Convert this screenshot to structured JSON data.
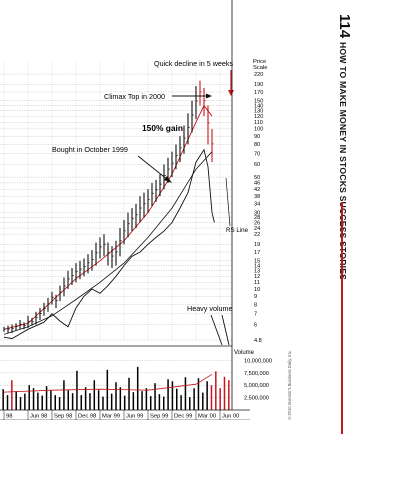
{
  "page": {
    "number": "114",
    "running_title": "HOW TO MAKE MONEY IN STOCKS SUCCESS STORIES",
    "copyright": "©2010 Investor's Business Daily, Inc."
  },
  "chart_data": {
    "type": "line",
    "price_scale_label": "Price Scale",
    "price_ticks": [
      220,
      190,
      170,
      150,
      140,
      130,
      120,
      110,
      100,
      90,
      80,
      70,
      60,
      50,
      46,
      42,
      38,
      34,
      30,
      28,
      26,
      24,
      22,
      19,
      17,
      15,
      14,
      13,
      12,
      11,
      10,
      9,
      8,
      7,
      6,
      4.8
    ],
    "log_scale": true,
    "ylim": [
      4.8,
      240
    ],
    "x_labels": [
      "98",
      "Jun 98",
      "Sep 98",
      "Dec 98",
      "Mar 99",
      "Jun 99",
      "Sep 99",
      "Dec 99",
      "Mar 00",
      "Jun 00"
    ],
    "x_months": [
      0,
      3,
      6,
      9,
      12,
      15,
      18,
      21,
      24,
      27
    ],
    "xlim": [
      -0.5,
      28.5
    ],
    "price_bars": [
      [
        0,
        5.4,
        5.8
      ],
      [
        0.5,
        5.3,
        5.9
      ],
      [
        1,
        5.3,
        6.0
      ],
      [
        1.5,
        5.5,
        6.1
      ],
      [
        2,
        5.6,
        6.4
      ],
      [
        2.5,
        5.6,
        6.2
      ],
      [
        3,
        5.7,
        6.8
      ],
      [
        3.5,
        5.9,
        6.6
      ],
      [
        4,
        6.0,
        7.2
      ],
      [
        4.5,
        6.4,
        7.6
      ],
      [
        5,
        6.8,
        8.2
      ],
      [
        5.5,
        7.2,
        8.8
      ],
      [
        6,
        8.0,
        9.6
      ],
      [
        6.5,
        7.6,
        9.2
      ],
      [
        7,
        8.4,
        10.5
      ],
      [
        7.5,
        9.0,
        11.8
      ],
      [
        8,
        10.0,
        13.0
      ],
      [
        8.5,
        10.6,
        13.5
      ],
      [
        9,
        11.0,
        14.5
      ],
      [
        9.5,
        11.5,
        15.0
      ],
      [
        10,
        12.0,
        15.5
      ],
      [
        10.5,
        12.5,
        16.5
      ],
      [
        11,
        13.0,
        17.5
      ],
      [
        11.5,
        14.0,
        19.5
      ],
      [
        12,
        15.5,
        21.0
      ],
      [
        12.5,
        16.0,
        22.0
      ],
      [
        13,
        14.0,
        19.5
      ],
      [
        13.5,
        13.5,
        18.5
      ],
      [
        14,
        14.0,
        20.0
      ],
      [
        14.5,
        16.0,
        24.0
      ],
      [
        15,
        19.0,
        27.0
      ],
      [
        15.5,
        21.0,
        30.0
      ],
      [
        16,
        23.0,
        32.0
      ],
      [
        16.5,
        24.0,
        34.0
      ],
      [
        17,
        26.0,
        38.0
      ],
      [
        17.5,
        28.0,
        40.0
      ],
      [
        18,
        30.0,
        42.0
      ],
      [
        18.5,
        33.0,
        46.0
      ],
      [
        19,
        35.0,
        48.0
      ],
      [
        19.5,
        38.0,
        52.0
      ],
      [
        20,
        42.0,
        60.0
      ],
      [
        20.5,
        46.0,
        66.0
      ],
      [
        21,
        50.0,
        72.0
      ],
      [
        21.5,
        56.0,
        80.0
      ],
      [
        22,
        62.0,
        90.0
      ],
      [
        22.5,
        70.0,
        105.0
      ],
      [
        23,
        80.0,
        125.0
      ],
      [
        23.5,
        95.0,
        150.0
      ],
      [
        24,
        115.0,
        185.0
      ],
      [
        24.5,
        140.0,
        200.0
      ],
      [
        25,
        120.0,
        180.0
      ],
      [
        25.5,
        80.0,
        140.0
      ],
      [
        26,
        62.0,
        100.0
      ]
    ],
    "moving_average_10wk": [
      [
        0,
        5.6
      ],
      [
        3,
        6.1
      ],
      [
        6,
        8.4
      ],
      [
        9,
        11.6
      ],
      [
        12,
        15.0
      ],
      [
        15,
        20.0
      ],
      [
        18,
        30.0
      ],
      [
        21,
        52.0
      ],
      [
        24,
        110.0
      ],
      [
        25,
        140.0
      ],
      [
        26,
        120.0
      ]
    ],
    "moving_average_40wk": [
      [
        0,
        5.2
      ],
      [
        3,
        5.8
      ],
      [
        6,
        6.8
      ],
      [
        9,
        8.6
      ],
      [
        12,
        11.0
      ],
      [
        15,
        14.5
      ],
      [
        18,
        21.0
      ],
      [
        21,
        32.0
      ],
      [
        24,
        56.0
      ],
      [
        26,
        72.0
      ]
    ],
    "rs_line": [
      [
        0,
        5.0
      ],
      [
        1,
        4.9
      ],
      [
        3,
        5.6
      ],
      [
        5,
        6.2
      ],
      [
        6,
        7.0
      ],
      [
        7,
        6.3
      ],
      [
        8,
        5.8
      ],
      [
        9,
        7.6
      ],
      [
        10,
        9.0
      ],
      [
        11,
        10.0
      ],
      [
        12,
        9.4
      ],
      [
        13,
        10.5
      ],
      [
        14,
        12.0
      ],
      [
        15,
        14.0
      ],
      [
        16,
        16.0
      ],
      [
        17,
        17.0
      ],
      [
        18,
        19.0
      ],
      [
        19,
        21.0
      ],
      [
        20,
        23.0
      ],
      [
        21,
        26.0
      ],
      [
        22,
        32.0
      ],
      [
        23,
        40.0
      ],
      [
        24,
        62.0
      ],
      [
        25,
        74.0
      ],
      [
        25.5,
        58.0
      ],
      [
        26,
        30.0
      ],
      [
        26.3,
        26.0
      ]
    ],
    "annotations": {
      "decline": "Quick decline in 5 weeks",
      "climax": "Climax Top in 2000",
      "gain": "150% gain",
      "bought": "Bought in October 1999",
      "rs_line": "RS Line",
      "heavy_volume": "Heavy volume"
    },
    "volume": {
      "label": "Volume",
      "ticks": [
        10000000,
        7500000,
        5000000,
        2500000
      ],
      "tick_labels": [
        "10,000,000",
        "7,500,000",
        "5,000,000",
        "2,500,000"
      ],
      "ylim": [
        0,
        12500000
      ],
      "bars": [
        4200000,
        3000000,
        6000000,
        3800000,
        2600000,
        3300000,
        5000000,
        4400000,
        3500000,
        2900000,
        4800000,
        3900000,
        3000000,
        2600000,
        6000000,
        4100000,
        3400000,
        7900000,
        3000000,
        4600000,
        3400000,
        6000000,
        4000000,
        2700000,
        8100000,
        3300000,
        5600000,
        4600000,
        2900000,
        6500000,
        3600000,
        8700000,
        3800000,
        4400000,
        2800000,
        5400000,
        3200000,
        2700000,
        6200000,
        5800000,
        4300000,
        3000000,
        6600000,
        2600000,
        4400000,
        6400000,
        3500000,
        5800000,
        5000000,
        7800000,
        4400000,
        6700000,
        6000000
      ],
      "bar_colors": [
        "#000000",
        "#000000",
        "#c4161c",
        "#000000",
        "#000000",
        "#000000",
        "#000000",
        "#000000",
        "#000000",
        "#000000",
        "#000000",
        "#000000",
        "#000000",
        "#000000",
        "#000000",
        "#000000",
        "#000000",
        "#000000",
        "#000000",
        "#000000",
        "#000000",
        "#000000",
        "#000000",
        "#000000",
        "#000000",
        "#000000",
        "#000000",
        "#000000",
        "#000000",
        "#000000",
        "#000000",
        "#000000",
        "#000000",
        "#000000",
        "#000000",
        "#000000",
        "#000000",
        "#000000",
        "#000000",
        "#000000",
        "#000000",
        "#000000",
        "#000000",
        "#000000",
        "#000000",
        "#000000",
        "#000000",
        "#000000",
        "#c4161c",
        "#c4161c",
        "#c4161c",
        "#c4161c",
        "#c4161c"
      ],
      "avg": [
        [
          0,
          3600000
        ],
        [
          6,
          4000000
        ],
        [
          12,
          4200000
        ],
        [
          18,
          4000000
        ],
        [
          24,
          5200000
        ],
        [
          26,
          7200000
        ]
      ]
    },
    "colors": {
      "price_bar": "#111111",
      "price_bar_highlight": "#c4161c",
      "ma_10wk": "#c4161c",
      "ma_40wk": "#111111",
      "rs_line": "#111111",
      "accent": "#c4161c"
    },
    "grid": true
  }
}
